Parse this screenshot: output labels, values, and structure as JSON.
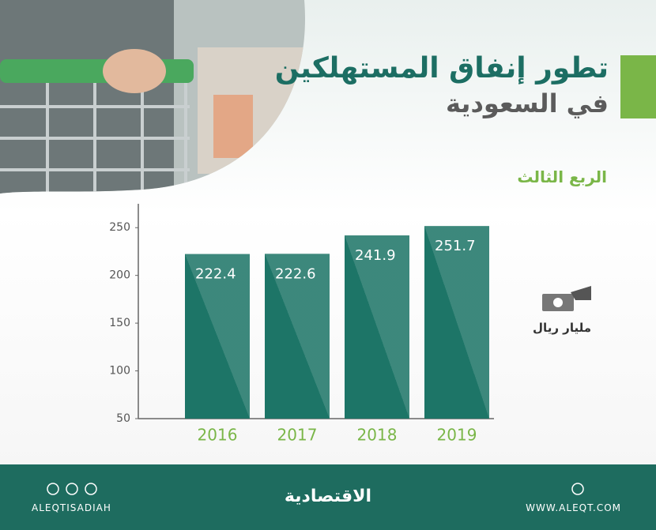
{
  "header": {
    "title_line1": "تطور إنفاق المستهلكين",
    "title_line2": "في السعودية",
    "subtitle": "الربع الثالث"
  },
  "unit": "مليار ريال",
  "chart_data": {
    "type": "bar",
    "categories": [
      "2016",
      "2017",
      "2018",
      "2019"
    ],
    "values": [
      222.4,
      222.6,
      241.9,
      251.7
    ],
    "color": "#1d7567",
    "ylim": [
      50,
      275
    ],
    "yticks": [
      50,
      100,
      150,
      200,
      250
    ]
  },
  "footer": {
    "handle": "ALEQTISADIAH",
    "brand": "الاقتصادية",
    "website": "WWW.ALEQT.COM"
  }
}
